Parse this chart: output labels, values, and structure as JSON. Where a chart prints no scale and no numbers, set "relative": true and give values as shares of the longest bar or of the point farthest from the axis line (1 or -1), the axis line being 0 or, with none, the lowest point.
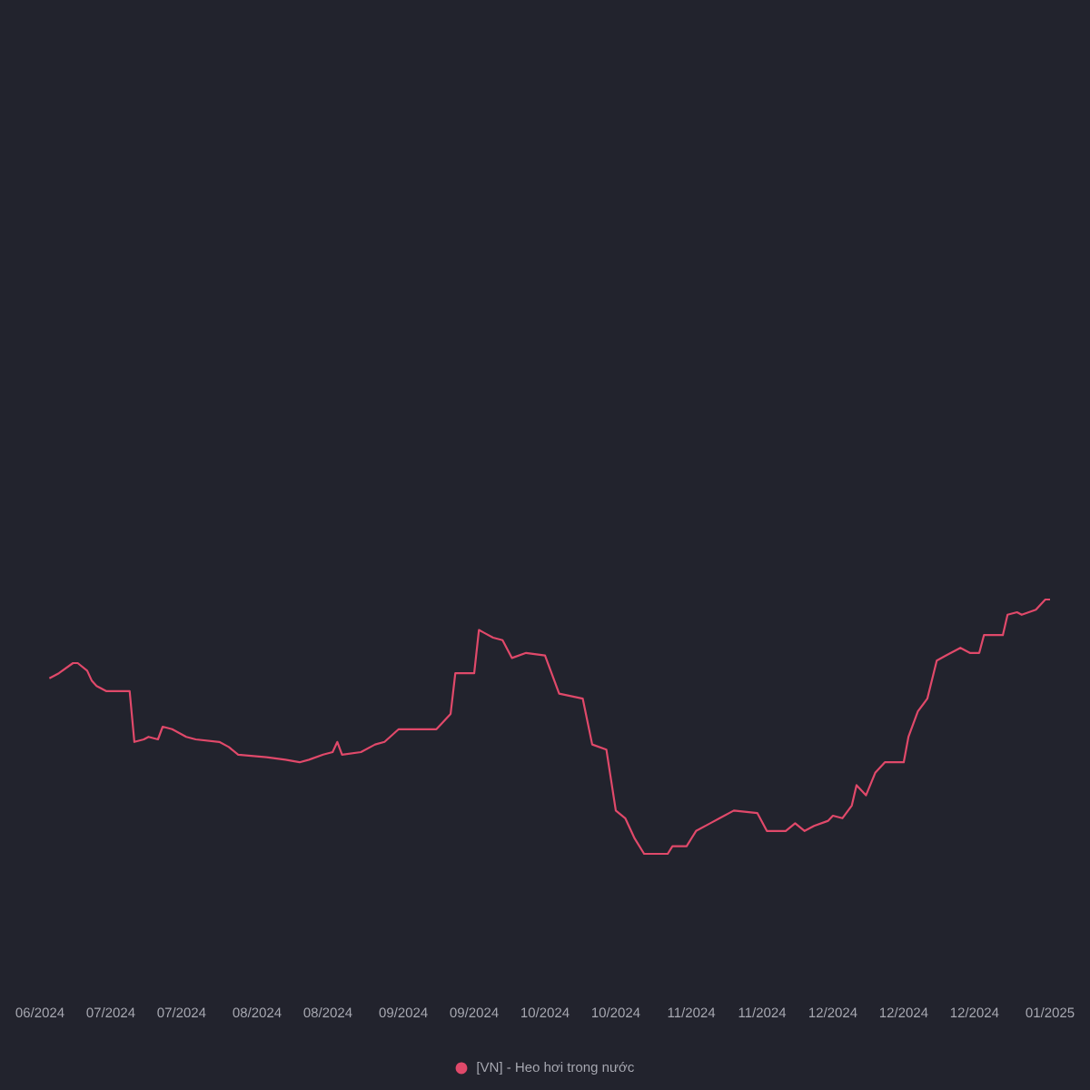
{
  "chart_data": {
    "type": "line",
    "relative": true,
    "legend": "bottom",
    "xlim": [
      "2024-06-16",
      "2025-01-16"
    ],
    "xticks": [
      {
        "value": "2024-06-16",
        "label": "06/2024"
      },
      {
        "value": "2024-07-01",
        "label": "07/2024"
      },
      {
        "value": "2024-07-16",
        "label": "07/2024"
      },
      {
        "value": "2024-08-01",
        "label": "08/2024"
      },
      {
        "value": "2024-08-16",
        "label": "08/2024"
      },
      {
        "value": "2024-09-01",
        "label": "09/2024"
      },
      {
        "value": "2024-09-16",
        "label": "09/2024"
      },
      {
        "value": "2024-10-01",
        "label": "10/2024"
      },
      {
        "value": "2024-10-16",
        "label": "10/2024"
      },
      {
        "value": "2024-11-01",
        "label": "11/2024"
      },
      {
        "value": "2024-11-16",
        "label": "11/2024"
      },
      {
        "value": "2024-12-01",
        "label": "12/2024"
      },
      {
        "value": "2024-12-16",
        "label": "12/2024"
      },
      {
        "value": "2024-12-31",
        "label": "12/2024"
      },
      {
        "value": "2025-01-16",
        "label": "01/2025"
      }
    ],
    "x": [
      "2024-06-18",
      "2024-06-20",
      "2024-06-23",
      "2024-06-24",
      "2024-06-26",
      "2024-06-27",
      "2024-06-28",
      "2024-06-30",
      "2024-07-02",
      "2024-07-04",
      "2024-07-05",
      "2024-07-06",
      "2024-07-08",
      "2024-07-09",
      "2024-07-11",
      "2024-07-12",
      "2024-07-14",
      "2024-07-17",
      "2024-07-19",
      "2024-07-24",
      "2024-07-26",
      "2024-07-28",
      "2024-08-03",
      "2024-08-07",
      "2024-08-10",
      "2024-08-12",
      "2024-08-15",
      "2024-08-17",
      "2024-08-18",
      "2024-08-19",
      "2024-08-23",
      "2024-08-26",
      "2024-08-28",
      "2024-08-31",
      "2024-09-08",
      "2024-09-11",
      "2024-09-12",
      "2024-09-16",
      "2024-09-17",
      "2024-09-18",
      "2024-09-20",
      "2024-09-22",
      "2024-09-24",
      "2024-09-27",
      "2024-10-01",
      "2024-10-04",
      "2024-10-09",
      "2024-10-11",
      "2024-10-14",
      "2024-10-16",
      "2024-10-18",
      "2024-10-20",
      "2024-10-22",
      "2024-10-27",
      "2024-10-28",
      "2024-10-31",
      "2024-11-02",
      "2024-11-05",
      "2024-11-07",
      "2024-11-10",
      "2024-11-15",
      "2024-11-17",
      "2024-11-21",
      "2024-11-23",
      "2024-11-25",
      "2024-11-27",
      "2024-11-30",
      "2024-12-01",
      "2024-12-03",
      "2024-12-05",
      "2024-12-06",
      "2024-12-08",
      "2024-12-10",
      "2024-12-12",
      "2024-12-16",
      "2024-12-17",
      "2024-12-19",
      "2024-12-21",
      "2024-12-23",
      "2024-12-25",
      "2024-12-28",
      "2024-12-30",
      "2025-01-01",
      "2025-01-02",
      "2025-01-06",
      "2025-01-07",
      "2025-01-09",
      "2025-01-10",
      "2025-01-13",
      "2025-01-15",
      "2025-01-16"
    ],
    "series": [
      {
        "name": "[VN] - Heo hơi trong nước",
        "color": "#e0496a",
        "values": [
          0.69,
          0.71,
          0.75,
          0.75,
          0.72,
          0.68,
          0.66,
          0.64,
          0.64,
          0.64,
          0.64,
          0.44,
          0.45,
          0.46,
          0.45,
          0.5,
          0.49,
          0.46,
          0.45,
          0.44,
          0.42,
          0.39,
          0.38,
          0.37,
          0.36,
          0.37,
          0.39,
          0.4,
          0.44,
          0.39,
          0.4,
          0.43,
          0.44,
          0.49,
          0.49,
          0.55,
          0.71,
          0.71,
          0.88,
          0.87,
          0.85,
          0.84,
          0.77,
          0.79,
          0.78,
          0.63,
          0.61,
          0.43,
          0.41,
          0.17,
          0.14,
          0.06,
          0,
          0,
          0.03,
          0.03,
          0.09,
          0.12,
          0.14,
          0.17,
          0.16,
          0.09,
          0.09,
          0.12,
          0.09,
          0.11,
          0.13,
          0.15,
          0.14,
          0.19,
          0.27,
          0.23,
          0.32,
          0.36,
          0.36,
          0.46,
          0.56,
          0.61,
          0.76,
          0.78,
          0.81,
          0.79,
          0.79,
          0.86,
          0.86,
          0.94,
          0.95,
          0.94,
          0.96,
          1,
          1
        ]
      }
    ]
  }
}
